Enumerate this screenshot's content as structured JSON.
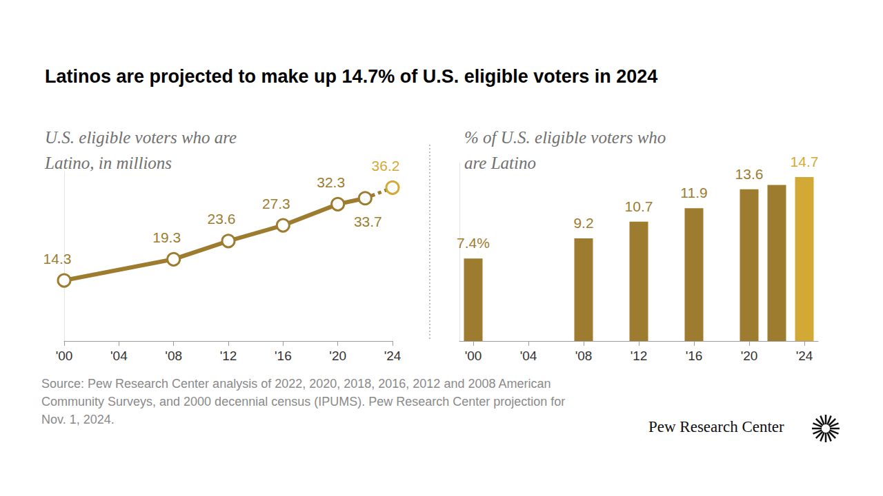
{
  "title": "Latinos are projected to make up 14.7% of U.S. eligible voters in 2024",
  "source": "Source: Pew Research Center analysis of 2022, 2020, 2018, 2016, 2012 and 2008 American Community Surveys, and 2000 decennial census (IPUMS). Pew Research Center projection for Nov. 1, 2024.",
  "brand": "Pew Research Center",
  "chart_data": [
    {
      "type": "line",
      "subtitle": "U.S. eligible voters who are\nLatino, in millions",
      "x": [
        2000,
        2008,
        2012,
        2016,
        2020,
        2022,
        2024
      ],
      "values": [
        14.3,
        19.3,
        23.6,
        27.3,
        32.3,
        33.7,
        36.2
      ],
      "colors": [
        "#9e7c2f",
        "#9e7c2f",
        "#9e7c2f",
        "#9e7c2f",
        "#9e7c2f",
        "#9e7c2f",
        "#d3a936"
      ],
      "xlim": [
        2000,
        2024
      ],
      "xticks": [
        {
          "value": 2000,
          "label": "'00"
        },
        {
          "value": 2004,
          "label": "'04"
        },
        {
          "value": 2008,
          "label": "'08"
        },
        {
          "value": 2012,
          "label": "'12"
        },
        {
          "value": 2016,
          "label": "'16"
        },
        {
          "value": 2020,
          "label": "'20"
        },
        {
          "value": 2024,
          "label": "'24"
        }
      ],
      "ylim": [
        0,
        40
      ],
      "grid": false,
      "data_labels": true,
      "tick_labels": "x"
    },
    {
      "type": "bar",
      "subtitle": "% of U.S. eligible voters who\nare Latino",
      "x": [
        2000,
        2008,
        2012,
        2016,
        2020,
        2022,
        2024
      ],
      "values": [
        7.4,
        9.2,
        10.7,
        11.9,
        13.6,
        14.0,
        14.7
      ],
      "value_labels": [
        "7.4%",
        "9.2",
        "10.7",
        "11.9",
        "13.6",
        null,
        "14.7"
      ],
      "colors": [
        "#9e7c2f",
        "#9e7c2f",
        "#9e7c2f",
        "#9e7c2f",
        "#9e7c2f",
        "#9e7c2f",
        "#d3a936"
      ],
      "xlim": [
        1999,
        2025
      ],
      "xticks": [
        {
          "value": 2000,
          "label": "'00"
        },
        {
          "value": 2004,
          "label": "'04"
        },
        {
          "value": 2008,
          "label": "'08"
        },
        {
          "value": 2012,
          "label": "'12"
        },
        {
          "value": 2016,
          "label": "'16"
        },
        {
          "value": 2020,
          "label": "'20"
        },
        {
          "value": 2024,
          "label": "'24"
        }
      ],
      "ylim": [
        0,
        16
      ],
      "grid": false,
      "data_labels": true,
      "tick_labels": "x"
    }
  ]
}
